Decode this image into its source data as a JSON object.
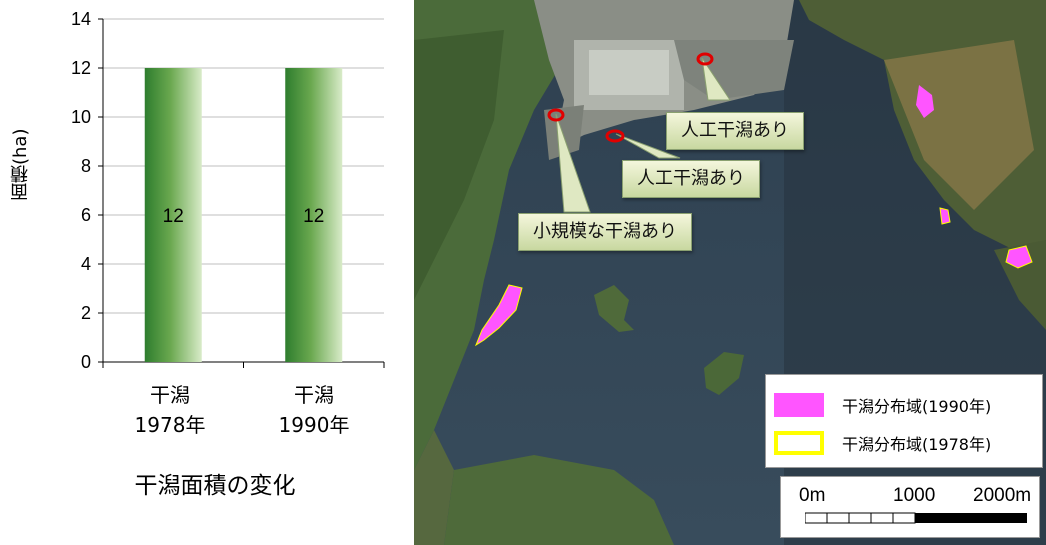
{
  "chart_data": {
    "type": "bar",
    "categories": [
      "干潟\n1978年",
      "干潟\n1990年"
    ],
    "values": [
      12,
      12
    ],
    "data_labels": [
      "12",
      "12"
    ],
    "title": "干潟面積の変化",
    "xlabel": "",
    "ylabel": "面積(ha)",
    "ylim": [
      0,
      14
    ],
    "yticks": [
      "0",
      "2",
      "4",
      "6",
      "8",
      "10",
      "12",
      "14"
    ],
    "grid": true,
    "bar_color": "#2e7d2e",
    "bar_fade_color": "#d8ebc8"
  },
  "map": {
    "callouts": {
      "artificial_1": "人工干潟あり",
      "artificial_2": "人工干潟あり",
      "small": "小規模な干潟あり"
    },
    "legend": {
      "item_1990": "干潟分布域(1990年)",
      "item_1978": "干潟分布域(1978年)",
      "color_1990": "#ff55ff",
      "color_1978": "#ffff00"
    },
    "scale": {
      "label_0": "0m",
      "label_1000": "1000",
      "label_2000": "2000m"
    },
    "marker_color": "#e00000"
  }
}
